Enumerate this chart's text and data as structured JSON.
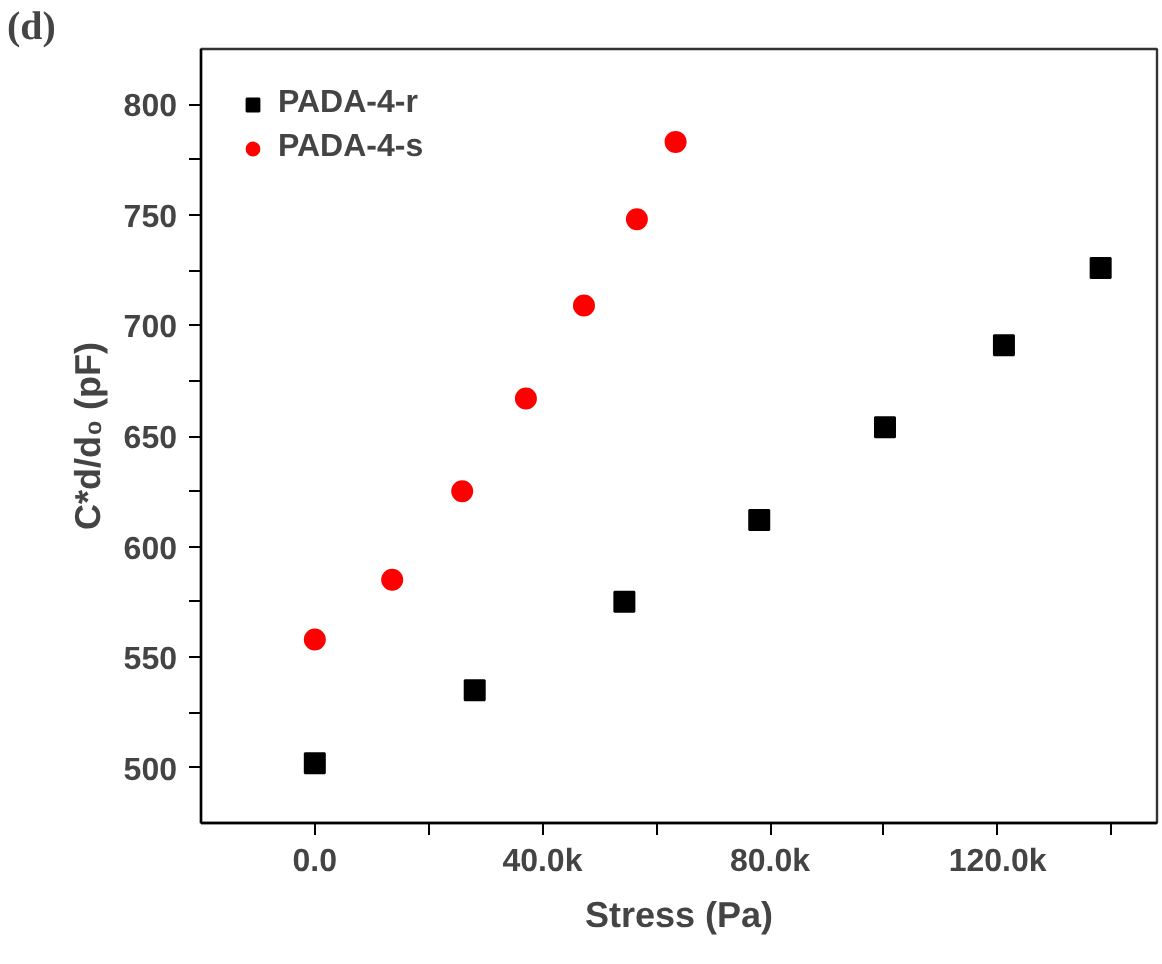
{
  "chart_data": {
    "type": "scatter",
    "title": "(d)",
    "xlabel": "Stress (Pa)",
    "ylabel": "C*d/d₀ (pF)",
    "xlim": [
      -20000,
      148000
    ],
    "ylim": [
      475,
      825
    ],
    "xticks": [
      {
        "value": 0,
        "label": "0.0"
      },
      {
        "value": 20000,
        "label": null
      },
      {
        "value": 40000,
        "label": "40.0k"
      },
      {
        "value": 60000,
        "label": null
      },
      {
        "value": 80000,
        "label": "80.0k"
      },
      {
        "value": 100000,
        "label": null
      },
      {
        "value": 120000,
        "label": "120.0k"
      },
      {
        "value": 140000,
        "label": null
      }
    ],
    "yticks": [
      500,
      {
        "value": 525,
        "label": null
      },
      550,
      {
        "value": 575,
        "label": null
      },
      600,
      {
        "value": 625,
        "label": null
      },
      650,
      {
        "value": 675,
        "label": null
      },
      700,
      {
        "value": 725,
        "label": null
      },
      750,
      {
        "value": 775,
        "label": null
      },
      800
    ],
    "legend": "top left",
    "grid": false,
    "series": [
      {
        "name": "PADA-4-r",
        "color": "#000000",
        "marker": "square",
        "x": [
          0,
          28100,
          54400,
          78100,
          100200,
          121100,
          138100
        ],
        "values": [
          502,
          535,
          575,
          612,
          654,
          691,
          726
        ]
      },
      {
        "name": "PADA-4-s",
        "color": "#ff0000",
        "marker": "circle",
        "x": [
          0,
          13600,
          25900,
          37100,
          47300,
          56600,
          63400
        ],
        "values": [
          558,
          585,
          625,
          667,
          709,
          748,
          783
        ]
      }
    ]
  }
}
